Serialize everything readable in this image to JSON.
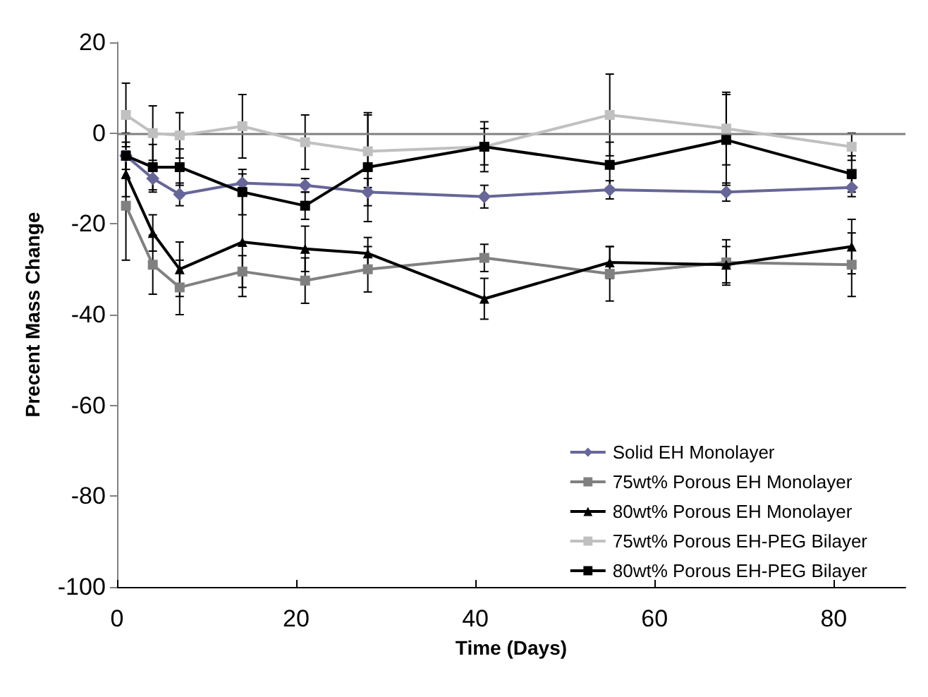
{
  "chart_data": {
    "type": "line",
    "xlabel": "Time (Days)",
    "ylabel": "Precent Mass Change",
    "x": [
      1,
      4,
      7,
      14,
      21,
      28,
      41,
      55,
      68,
      82
    ],
    "xlim": [
      0,
      88
    ],
    "xticks": [
      0,
      20,
      40,
      60,
      80
    ],
    "ylim": [
      -100,
      20
    ],
    "yticks": [
      -100,
      -80,
      -60,
      -40,
      -20,
      0,
      20
    ],
    "grid": false,
    "legend": "bottom right",
    "line_style": "solid",
    "ref_lines": [
      {
        "axis": "y",
        "value": 0,
        "color": "#808080"
      }
    ],
    "series": [
      {
        "name": "Solid EH Monolayer",
        "color": "#666699",
        "marker": "diamond",
        "values": [
          -5,
          -10,
          -13.5,
          -11,
          -11.5,
          -13,
          -14,
          -12.5,
          -13,
          -12
        ],
        "errors": [
          3,
          3,
          2.5,
          2,
          1.5,
          3,
          2.5,
          2,
          2,
          2
        ]
      },
      {
        "name": "75wt% Porous EH Monolayer",
        "color": "#808080",
        "marker": "square",
        "values": [
          -16,
          -29,
          -34,
          -30.5,
          -32.5,
          -30,
          -27.5,
          -31,
          -28.5,
          -29
        ],
        "errors": [
          12,
          6.5,
          6,
          3.5,
          5,
          5,
          3,
          6,
          5,
          7
        ]
      },
      {
        "name": "80wt% Porous EH Monolayer",
        "color": "#000000",
        "marker": "triangle",
        "values": [
          -9,
          -22,
          -30,
          -24,
          -25.5,
          -26.5,
          -36.5,
          -28.5,
          -29,
          -25
        ],
        "errors": [
          5,
          4,
          6,
          12,
          5,
          3.5,
          4.5,
          3.5,
          4,
          6
        ]
      },
      {
        "name": "75wt% Porous EH-PEG Bilayer",
        "color": "#c0c0c0",
        "marker": "square",
        "values": [
          4,
          0,
          -0.5,
          1.5,
          -2,
          -4,
          -3,
          4,
          1,
          -3
        ],
        "errors": [
          7,
          6,
          5,
          7,
          6,
          8,
          4,
          9,
          8,
          3
        ]
      },
      {
        "name": "80wt% Porous EH-PEG Bilayer",
        "color": "#000000",
        "marker": "square",
        "values": [
          -5,
          -7.5,
          -7.5,
          -13,
          -16,
          -7.5,
          -3,
          -7,
          -1.5,
          -9
        ],
        "errors": [
          5,
          5,
          4,
          5,
          3,
          12,
          5.5,
          5,
          10,
          4
        ]
      }
    ]
  }
}
